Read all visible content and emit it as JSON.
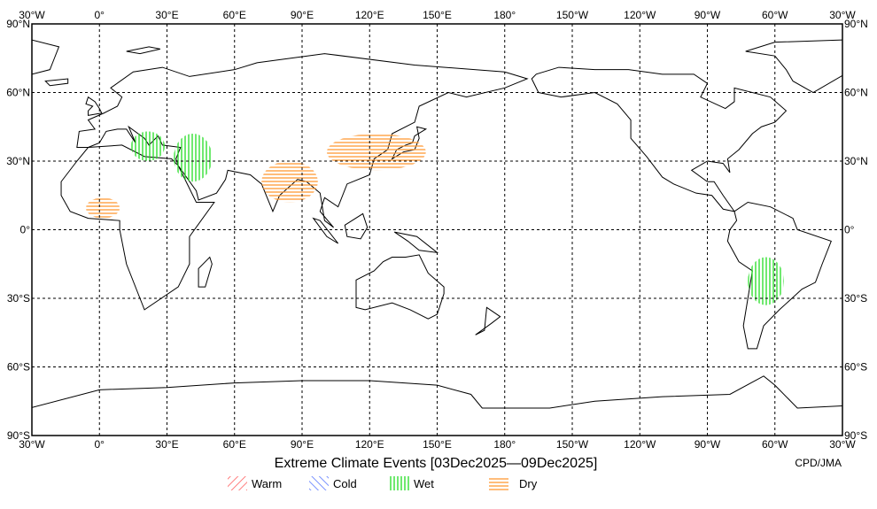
{
  "title": "Extreme Climate Events [03Dec2025—09Dec2025]",
  "credit": "CPD/JMA",
  "map": {
    "projection": "equirectangular",
    "lon_range": [
      -30,
      330
    ],
    "lat_range": [
      -90,
      90
    ],
    "grid": "dashed, every 30 degrees",
    "lon_labels": [
      "30°W",
      "0°",
      "30°E",
      "60°E",
      "90°E",
      "120°E",
      "150°E",
      "180°",
      "150°W",
      "120°W",
      "90°W",
      "60°W",
      "30°W"
    ],
    "lat_labels": [
      "90°N",
      "60°N",
      "30°N",
      "0°",
      "30°S",
      "60°S",
      "90°S"
    ]
  },
  "legend": [
    {
      "label": "Warm",
      "color": "#ff5a5a",
      "hatch": "diagonal-right"
    },
    {
      "label": "Cold",
      "color": "#4a6cff",
      "hatch": "diagonal-left"
    },
    {
      "label": "Wet",
      "color": "#22dd22",
      "hatch": "vertical"
    },
    {
      "label": "Dry",
      "color": "#ff9933",
      "hatch": "horizontal"
    }
  ],
  "events": [
    {
      "type": "Wet",
      "lon": [
        14,
        29
      ],
      "lat": [
        30,
        43
      ]
    },
    {
      "type": "Wet",
      "lon": [
        33,
        50
      ],
      "lat": [
        21,
        42
      ]
    },
    {
      "type": "Wet",
      "lon": [
        288,
        304
      ],
      "lat": [
        -33,
        -12
      ]
    },
    {
      "type": "Dry",
      "lon": [
        -6,
        9
      ],
      "lat": [
        5,
        14
      ]
    },
    {
      "type": "Dry",
      "lon": [
        72,
        97
      ],
      "lat": [
        12,
        30
      ]
    },
    {
      "type": "Dry",
      "lon": [
        101,
        145
      ],
      "lat": [
        26,
        42
      ]
    }
  ]
}
